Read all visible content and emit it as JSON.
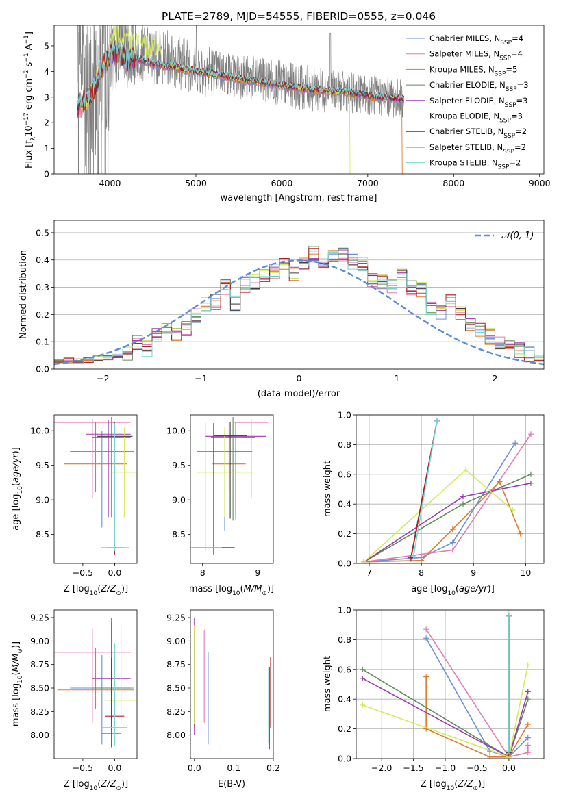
{
  "palette": {
    "Chabrier MILES": "#6a8fdc",
    "Salpeter MILES": "#e07bb4",
    "Kroupa MILES": "#de7a2c",
    "Chabrier ELODIE": "#5e8a5e",
    "Salpeter ELODIE": "#9c3ab0",
    "Kroupa ELODIE": "#d4ea58",
    "Chabrier STELIB": "#3c3c3c",
    "Salpeter STELIB": "#b22020",
    "Kroupa STELIB": "#7ad6d6",
    "data": "#808080",
    "normal": "#5b8bd6"
  },
  "chart_data": [
    {
      "id": "spectrum",
      "type": "line",
      "title": "PLATE=2789, MJD=54555, FIBERID=0555, z=0.046",
      "xlabel": "wavelength [Angstrom, rest frame]",
      "ylabel": "Flux [f_λ 10^-17 erg cm^-2 s^-1 A^-1]",
      "xlim": [
        3350,
        9050
      ],
      "ylim": [
        0,
        5.8
      ],
      "xticks": [
        4000,
        5000,
        6000,
        7000,
        8000,
        9000
      ],
      "yticks": [
        0,
        1,
        2,
        3,
        4,
        5
      ],
      "legend": [
        {
          "label": "Chabrier MILES, N_SSP=4",
          "main": "Chabrier MILES, N",
          "sub": "SSP",
          "tail": "=4"
        },
        {
          "label": "Salpeter MILES, N_SSP=4",
          "main": "Salpeter MILES, N",
          "sub": "SSP",
          "tail": "=4"
        },
        {
          "label": "Kroupa MILES, N_SSP=5",
          "main": "Kroupa MILES, N",
          "sub": "SSP",
          "tail": "=5"
        },
        {
          "label": "Chabrier ELODIE, N_SSP=3",
          "main": "Chabrier ELODIE, N",
          "sub": "SSP",
          "tail": "=3"
        },
        {
          "label": "Salpeter ELODIE, N_SSP=3",
          "main": "Salpeter ELODIE, N",
          "sub": "SSP",
          "tail": "=3"
        },
        {
          "label": "Kroupa ELODIE, N_SSP=3",
          "main": "Kroupa ELODIE, N",
          "sub": "SSP",
          "tail": "=3"
        },
        {
          "label": "Chabrier STELIB, N_SSP=2",
          "main": "Chabrier STELIB, N",
          "sub": "SSP",
          "tail": "=2"
        },
        {
          "label": "Salpeter STELIB, N_SSP=2",
          "main": "Salpeter STELIB, N",
          "sub": "SSP",
          "tail": "=2"
        },
        {
          "label": "Kroupa STELIB, N_SSP=2",
          "main": "Kroupa STELIB, N",
          "sub": "SSP",
          "tail": "=2"
        }
      ],
      "legend_position": "upper right",
      "data_continuum": {
        "x": [
          3620,
          3700,
          3800,
          3900,
          4000,
          4100,
          4300,
          4500,
          4700,
          4900,
          5100,
          5300,
          5500,
          5700,
          5900,
          6100,
          6300,
          6500,
          6700,
          6900,
          7100,
          7300,
          7400
        ],
        "y": [
          3.0,
          2.9,
          3.4,
          4.2,
          4.7,
          4.9,
          4.8,
          4.6,
          4.5,
          4.3,
          4.1,
          3.95,
          3.85,
          3.7,
          3.6,
          3.45,
          3.35,
          3.3,
          3.2,
          3.15,
          3.05,
          2.95,
          2.9
        ]
      },
      "model_continuum": {
        "x": [
          3620,
          3700,
          3800,
          3900,
          4000,
          4100,
          4200,
          4300,
          4500,
          4700,
          4900,
          5100,
          5300,
          5500,
          5700,
          5900,
          6100,
          6300,
          6500,
          6700,
          6900,
          7100,
          7300,
          7400
        ],
        "y": [
          2.6,
          2.8,
          3.2,
          4.1,
          4.6,
          4.75,
          4.4,
          4.5,
          4.3,
          4.2,
          4.05,
          3.95,
          3.85,
          3.7,
          3.6,
          3.5,
          3.4,
          3.3,
          3.25,
          3.2,
          3.1,
          3.0,
          2.95,
          2.9
        ]
      }
    },
    {
      "id": "residuals",
      "type": "histogram",
      "xlabel": "(data-model)/error",
      "ylabel": "Normed distribution",
      "xlim": [
        -2.5,
        2.5
      ],
      "ylim": [
        0,
        0.545
      ],
      "xticks": [
        -2,
        -1,
        0,
        1,
        2
      ],
      "yticks": [
        0.0,
        0.1,
        0.2,
        0.3,
        0.4,
        0.5
      ],
      "grid": true,
      "legend": [
        {
          "label": "N(0,1)",
          "display": "𝒩(0, 1)"
        }
      ],
      "legend_position": "upper right",
      "bin_edges_start": -2.5,
      "bin_width": 0.1,
      "series_base": [
        0.025,
        0.03,
        0.03,
        0.035,
        0.04,
        0.045,
        0.05,
        0.06,
        0.095,
        0.075,
        0.13,
        0.15,
        0.12,
        0.15,
        0.2,
        0.24,
        0.245,
        0.3,
        0.24,
        0.31,
        0.32,
        0.345,
        0.36,
        0.38,
        0.35,
        0.385,
        0.42,
        0.39,
        0.41,
        0.415,
        0.395,
        0.38,
        0.33,
        0.32,
        0.3,
        0.35,
        0.3,
        0.29,
        0.22,
        0.21,
        0.245,
        0.2,
        0.16,
        0.14,
        0.12,
        0.09,
        0.08,
        0.07,
        0.055,
        0.04,
        0.045,
        0.035,
        0.03,
        0.025,
        0.02,
        0.015,
        0.02,
        0.015,
        0.01,
        0.01
      ]
    },
    {
      "id": "age_vs_Z",
      "type": "errorbar",
      "xlabel": "Z [log10(Z/Z⊙)]",
      "ylabel": "age [log10(age/yr)]",
      "xlim": [
        -0.95,
        0.35
      ],
      "ylim": [
        8.08,
        10.23
      ],
      "xticks": [
        -0.5,
        0.0
      ],
      "yticks": [
        8.5,
        9.0,
        9.5,
        10.0
      ],
      "points": [
        {
          "x": -0.2,
          "y": 9.7,
          "xerr": 0.5,
          "yerr_lo": 1.1,
          "yerr_hi": 0.3,
          "series": "Chabrier MILES"
        },
        {
          "x": -0.35,
          "y": 10.12,
          "xerr": 0.6,
          "yerr_lo": 1.1,
          "yerr_hi": 0.05,
          "series": "Salpeter MILES"
        },
        {
          "x": -0.3,
          "y": 9.52,
          "xerr": 0.5,
          "yerr_lo": 0.4,
          "yerr_hi": 0.6,
          "series": "Kroupa MILES"
        },
        {
          "x": -0.05,
          "y": 9.9,
          "xerr": 0.3,
          "yerr_lo": 1.15,
          "yerr_hi": 0.3,
          "series": "Chabrier ELODIE"
        },
        {
          "x": -0.1,
          "y": 9.95,
          "xerr": 0.35,
          "yerr_lo": 1.2,
          "yerr_hi": 0.2,
          "series": "Salpeter ELODIE"
        },
        {
          "x": 0.15,
          "y": 9.4,
          "xerr": 0.2,
          "yerr_lo": 0.65,
          "yerr_hi": 0.65,
          "series": "Kroupa ELODIE"
        },
        {
          "x": 0.0,
          "y": 9.92,
          "xerr": 0.28,
          "yerr_lo": 1.2,
          "yerr_hi": 0.2,
          "series": "Chabrier STELIB"
        },
        {
          "x": 0.0,
          "y": 8.31,
          "xerr": 0.12,
          "yerr_lo": 0.1,
          "yerr_hi": 1.8,
          "series": "Salpeter STELIB"
        },
        {
          "x": 0.0,
          "y": 8.31,
          "xerr": 0.22,
          "yerr_lo": 0.05,
          "yerr_hi": 1.8,
          "series": "Kroupa STELIB"
        }
      ]
    },
    {
      "id": "age_vs_mass",
      "type": "errorbar",
      "xlabel": "mass [log10(M/M⊙)]",
      "ylabel": "",
      "xlim": [
        7.78,
        9.28
      ],
      "ylim": [
        8.08,
        10.23
      ],
      "xticks": [
        8,
        9
      ],
      "yticks": [
        8.5,
        9.0,
        9.5,
        10.0
      ],
      "points": [
        {
          "x": 8.4,
          "y": 9.7,
          "xerr": 0.5,
          "yerr_lo": 1.15,
          "yerr_hi": 0.3,
          "series": "Chabrier MILES"
        },
        {
          "x": 8.88,
          "y": 10.12,
          "xerr": 0.3,
          "yerr_lo": 1.1,
          "yerr_hi": 0.05,
          "series": "Salpeter MILES"
        },
        {
          "x": 8.48,
          "y": 9.52,
          "xerr": 0.3,
          "yerr_lo": 0.4,
          "yerr_hi": 0.6,
          "series": "Kroupa MILES"
        },
        {
          "x": 8.55,
          "y": 9.9,
          "xerr": 0.4,
          "yerr_lo": 1.2,
          "yerr_hi": 0.3,
          "series": "Chabrier ELODIE"
        },
        {
          "x": 8.6,
          "y": 9.92,
          "xerr": 0.55,
          "yerr_lo": 1.2,
          "yerr_hi": 0.2,
          "series": "Salpeter ELODIE"
        },
        {
          "x": 8.4,
          "y": 9.4,
          "xerr": 0.5,
          "yerr_lo": 0.65,
          "yerr_hi": 0.65,
          "series": "Kroupa ELODIE"
        },
        {
          "x": 8.5,
          "y": 9.93,
          "xerr": 0.3,
          "yerr_lo": 1.2,
          "yerr_hi": 0.2,
          "series": "Chabrier STELIB"
        },
        {
          "x": 8.2,
          "y": 8.31,
          "xerr": 0.38,
          "yerr_lo": 0.1,
          "yerr_hi": 1.8,
          "series": "Salpeter STELIB"
        },
        {
          "x": 8.05,
          "y": 8.31,
          "xerr": 0.3,
          "yerr_lo": 0.05,
          "yerr_hi": 1.8,
          "series": "Kroupa STELIB"
        }
      ]
    },
    {
      "id": "weight_vs_age",
      "type": "line",
      "xlabel": "age [log10(age/yr)]",
      "ylabel": "mass weight",
      "xlim": [
        6.75,
        10.35
      ],
      "ylim": [
        0,
        1.0
      ],
      "xticks": [
        7,
        8,
        9,
        10
      ],
      "yticks": [
        0.0,
        0.2,
        0.4,
        0.6,
        0.8,
        1.0
      ],
      "grid": true,
      "series": [
        {
          "name": "Chabrier MILES",
          "x": [
            6.9,
            8.0,
            8.6,
            9.8
          ],
          "y": [
            0.01,
            0.04,
            0.14,
            0.81
          ]
        },
        {
          "name": "Salpeter MILES",
          "x": [
            6.9,
            8.6,
            10.1
          ],
          "y": [
            0.01,
            0.09,
            0.87
          ]
        },
        {
          "name": "Kroupa MILES",
          "x": [
            6.9,
            8.0,
            8.6,
            9.5,
            9.9
          ],
          "y": [
            0.01,
            0.02,
            0.23,
            0.55,
            0.2
          ]
        },
        {
          "name": "Chabrier ELODIE",
          "x": [
            6.9,
            8.8,
            10.1
          ],
          "y": [
            0.01,
            0.4,
            0.6
          ]
        },
        {
          "name": "Salpeter ELODIE",
          "x": [
            6.9,
            8.8,
            10.1
          ],
          "y": [
            0.01,
            0.45,
            0.54
          ]
        },
        {
          "name": "Kroupa ELODIE",
          "x": [
            6.9,
            8.85,
            9.75
          ],
          "y": [
            0.01,
            0.63,
            0.36
          ]
        },
        {
          "name": "Chabrier STELIB",
          "x": [
            7.8,
            8.3
          ],
          "y": [
            0.04,
            0.96
          ]
        },
        {
          "name": "Salpeter STELIB",
          "x": [
            7.8,
            8.3
          ],
          "y": [
            0.03,
            0.96
          ]
        },
        {
          "name": "Kroupa STELIB",
          "x": [
            7.85,
            8.3
          ],
          "y": [
            0.05,
            0.96
          ]
        }
      ]
    },
    {
      "id": "mass_vs_Z",
      "type": "errorbar",
      "xlabel": "Z [log10(Z/Z⊙)]",
      "ylabel": "mass [log10(M/M⊙)]",
      "xlim": [
        -0.95,
        0.35
      ],
      "ylim": [
        7.75,
        9.33
      ],
      "xticks": [
        -0.5,
        0.0
      ],
      "yticks": [
        8.0,
        8.25,
        8.5,
        8.75,
        9.0,
        9.25
      ],
      "points": [
        {
          "x": -0.2,
          "y": 8.5,
          "xerr": 0.5,
          "yerr_lo": 0.6,
          "yerr_hi": 0.35,
          "series": "Chabrier MILES"
        },
        {
          "x": -0.35,
          "y": 8.88,
          "xerr": 0.6,
          "yerr_lo": 0.75,
          "yerr_hi": 0.25,
          "series": "Salpeter MILES"
        },
        {
          "x": -0.3,
          "y": 8.48,
          "xerr": 0.6,
          "yerr_lo": 0.2,
          "yerr_hi": 0.45,
          "series": "Kroupa MILES"
        },
        {
          "x": -0.05,
          "y": 8.5,
          "xerr": 0.3,
          "yerr_lo": 0.35,
          "yerr_hi": 0.7,
          "series": "Chabrier ELODIE"
        },
        {
          "x": -0.05,
          "y": 8.6,
          "xerr": 0.3,
          "yerr_lo": 0.55,
          "yerr_hi": 0.65,
          "series": "Salpeter ELODIE"
        },
        {
          "x": 0.1,
          "y": 8.37,
          "xerr": 0.25,
          "yerr_lo": 0.25,
          "yerr_hi": 0.8,
          "series": "Kroupa ELODIE"
        },
        {
          "x": -0.05,
          "y": 8.02,
          "xerr": 0.15,
          "yerr_lo": 0.15,
          "yerr_hi": 0.8,
          "series": "Chabrier STELIB"
        },
        {
          "x": 0.0,
          "y": 8.2,
          "xerr": 0.15,
          "yerr_lo": 0.2,
          "yerr_hi": 0.6,
          "series": "Salpeter STELIB"
        },
        {
          "x": 0.0,
          "y": 8.08,
          "xerr": 0.2,
          "yerr_lo": 0.2,
          "yerr_hi": 0.9,
          "series": "Kroupa STELIB"
        }
      ]
    },
    {
      "id": "mass_vs_EBV",
      "type": "errorbar",
      "xlabel": "E(B-V)",
      "ylabel": "",
      "xlim": [
        -0.01,
        0.2
      ],
      "ylim": [
        7.75,
        9.33
      ],
      "xticks": [
        0.0,
        0.1,
        0.2
      ],
      "tick_labels": [
        "0.0",
        "0.1",
        "0.2"
      ],
      "yticks": [
        8.0,
        8.25,
        8.5,
        8.75,
        9.0,
        9.25
      ],
      "points": [
        {
          "x": 0.035,
          "y": 8.5,
          "xerr": 0.0,
          "yerr_lo": 0.6,
          "yerr_hi": 0.38,
          "series": "Chabrier MILES"
        },
        {
          "x": 0.025,
          "y": 8.88,
          "xerr": 0.0,
          "yerr_lo": 0.75,
          "yerr_hi": 0.24,
          "series": "Salpeter MILES"
        },
        {
          "x": 0.0,
          "y": 8.48,
          "xerr": 0.0,
          "yerr_lo": 0.4,
          "yerr_hi": 0.5,
          "series": "Kroupa MILES"
        },
        {
          "x": 0.0,
          "y": 8.5,
          "xerr": 0.0,
          "yerr_lo": 0.4,
          "yerr_hi": 0.6,
          "series": "Chabrier ELODIE"
        },
        {
          "x": 0.0,
          "y": 8.6,
          "xerr": 0.0,
          "yerr_lo": 0.6,
          "yerr_hi": 0.65,
          "series": "Salpeter ELODIE"
        },
        {
          "x": 0.0,
          "y": 8.37,
          "xerr": 0.0,
          "yerr_lo": 0.25,
          "yerr_hi": 0.8,
          "series": "Kroupa ELODIE"
        },
        {
          "x": 0.19,
          "y": 8.3,
          "xerr": 0.0,
          "yerr_lo": 0.45,
          "yerr_hi": 0.42,
          "series": "Chabrier STELIB"
        },
        {
          "x": 0.193,
          "y": 8.45,
          "xerr": 0.0,
          "yerr_lo": 0.38,
          "yerr_hi": 0.38,
          "series": "Salpeter STELIB"
        },
        {
          "x": 0.188,
          "y": 8.3,
          "xerr": 0.0,
          "yerr_lo": 0.38,
          "yerr_hi": 0.42,
          "series": "Kroupa STELIB"
        }
      ]
    },
    {
      "id": "weight_vs_Z",
      "type": "line",
      "xlabel": "Z [log10(Z/Z⊙)]",
      "ylabel": "mass weight",
      "xlim": [
        -2.4,
        0.55
      ],
      "ylim": [
        0,
        1.0
      ],
      "xticks": [
        -2.0,
        -1.5,
        -1.0,
        -0.5,
        0.0
      ],
      "yticks": [
        0.0,
        0.2,
        0.4,
        0.6,
        0.8,
        1.0
      ],
      "grid": true,
      "series": [
        {
          "name": "Chabrier MILES",
          "x": [
            -1.3,
            -0.3,
            0.0,
            0.3
          ],
          "y": [
            0.81,
            0.05,
            0.01,
            0.14
          ]
        },
        {
          "name": "Salpeter MILES",
          "x": [
            -1.3,
            0.0,
            0.3,
            0.3
          ],
          "y": [
            0.87,
            0.01,
            0.04,
            0.09
          ]
        },
        {
          "name": "Kroupa MILES",
          "x": [
            -1.3,
            -1.3,
            -0.3,
            0.0,
            0.3
          ],
          "y": [
            0.55,
            0.2,
            0.01,
            0.01,
            0.23
          ]
        },
        {
          "name": "Chabrier ELODIE",
          "x": [
            -2.3,
            0.0,
            0.3
          ],
          "y": [
            0.6,
            0.01,
            0.4
          ]
        },
        {
          "name": "Salpeter ELODIE",
          "x": [
            -2.3,
            0.0,
            0.3
          ],
          "y": [
            0.54,
            0.01,
            0.45
          ]
        },
        {
          "name": "Kroupa ELODIE",
          "x": [
            -2.3,
            0.0,
            0.3
          ],
          "y": [
            0.36,
            0.01,
            0.63
          ]
        },
        {
          "name": "Chabrier STELIB",
          "x": [
            0.0,
            0.0
          ],
          "y": [
            0.04,
            0.96
          ]
        },
        {
          "name": "Salpeter STELIB",
          "x": [
            0.0,
            0.0
          ],
          "y": [
            0.03,
            0.96
          ]
        },
        {
          "name": "Kroupa STELIB",
          "x": [
            0.0,
            0.0
          ],
          "y": [
            0.05,
            0.96
          ]
        }
      ]
    }
  ]
}
